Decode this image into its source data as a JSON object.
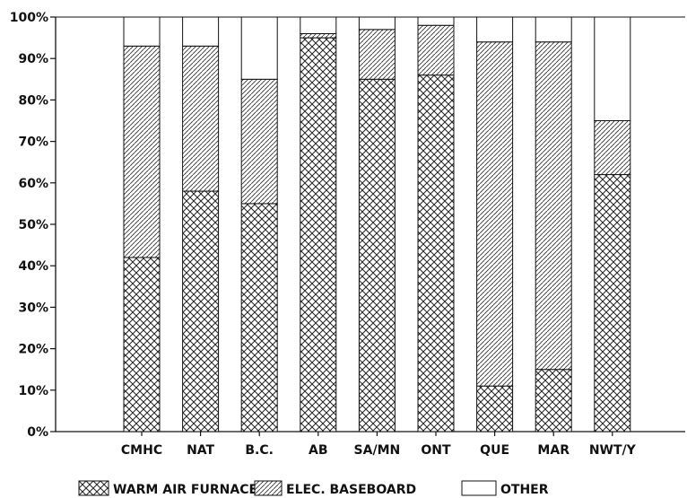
{
  "chart_data": {
    "type": "bar",
    "stacked": true,
    "percent": true,
    "categories": [
      "CMHC",
      "NAT",
      "B.C.",
      "AB",
      "SA/MN",
      "ONT",
      "QUE",
      "MAR",
      "NWT/Y"
    ],
    "series": [
      {
        "name": "WARM AIR FURNACE",
        "pattern": "crosshatch",
        "values": [
          42,
          58,
          55,
          95,
          85,
          86,
          11,
          15,
          62
        ]
      },
      {
        "name": "ELEC. BASEBOARD",
        "pattern": "diagonal",
        "values": [
          51,
          35,
          30,
          1,
          12,
          12,
          83,
          79,
          13
        ]
      },
      {
        "name": "OTHER",
        "pattern": "blank",
        "values": [
          7,
          7,
          15,
          4,
          3,
          2,
          6,
          6,
          25
        ]
      }
    ],
    "ylim": [
      0,
      100
    ],
    "yticks": [
      "0%",
      "10%",
      "20%",
      "30%",
      "40%",
      "50%",
      "60%",
      "70%",
      "80%",
      "90%",
      "100%"
    ],
    "legend_position": "bottom"
  }
}
